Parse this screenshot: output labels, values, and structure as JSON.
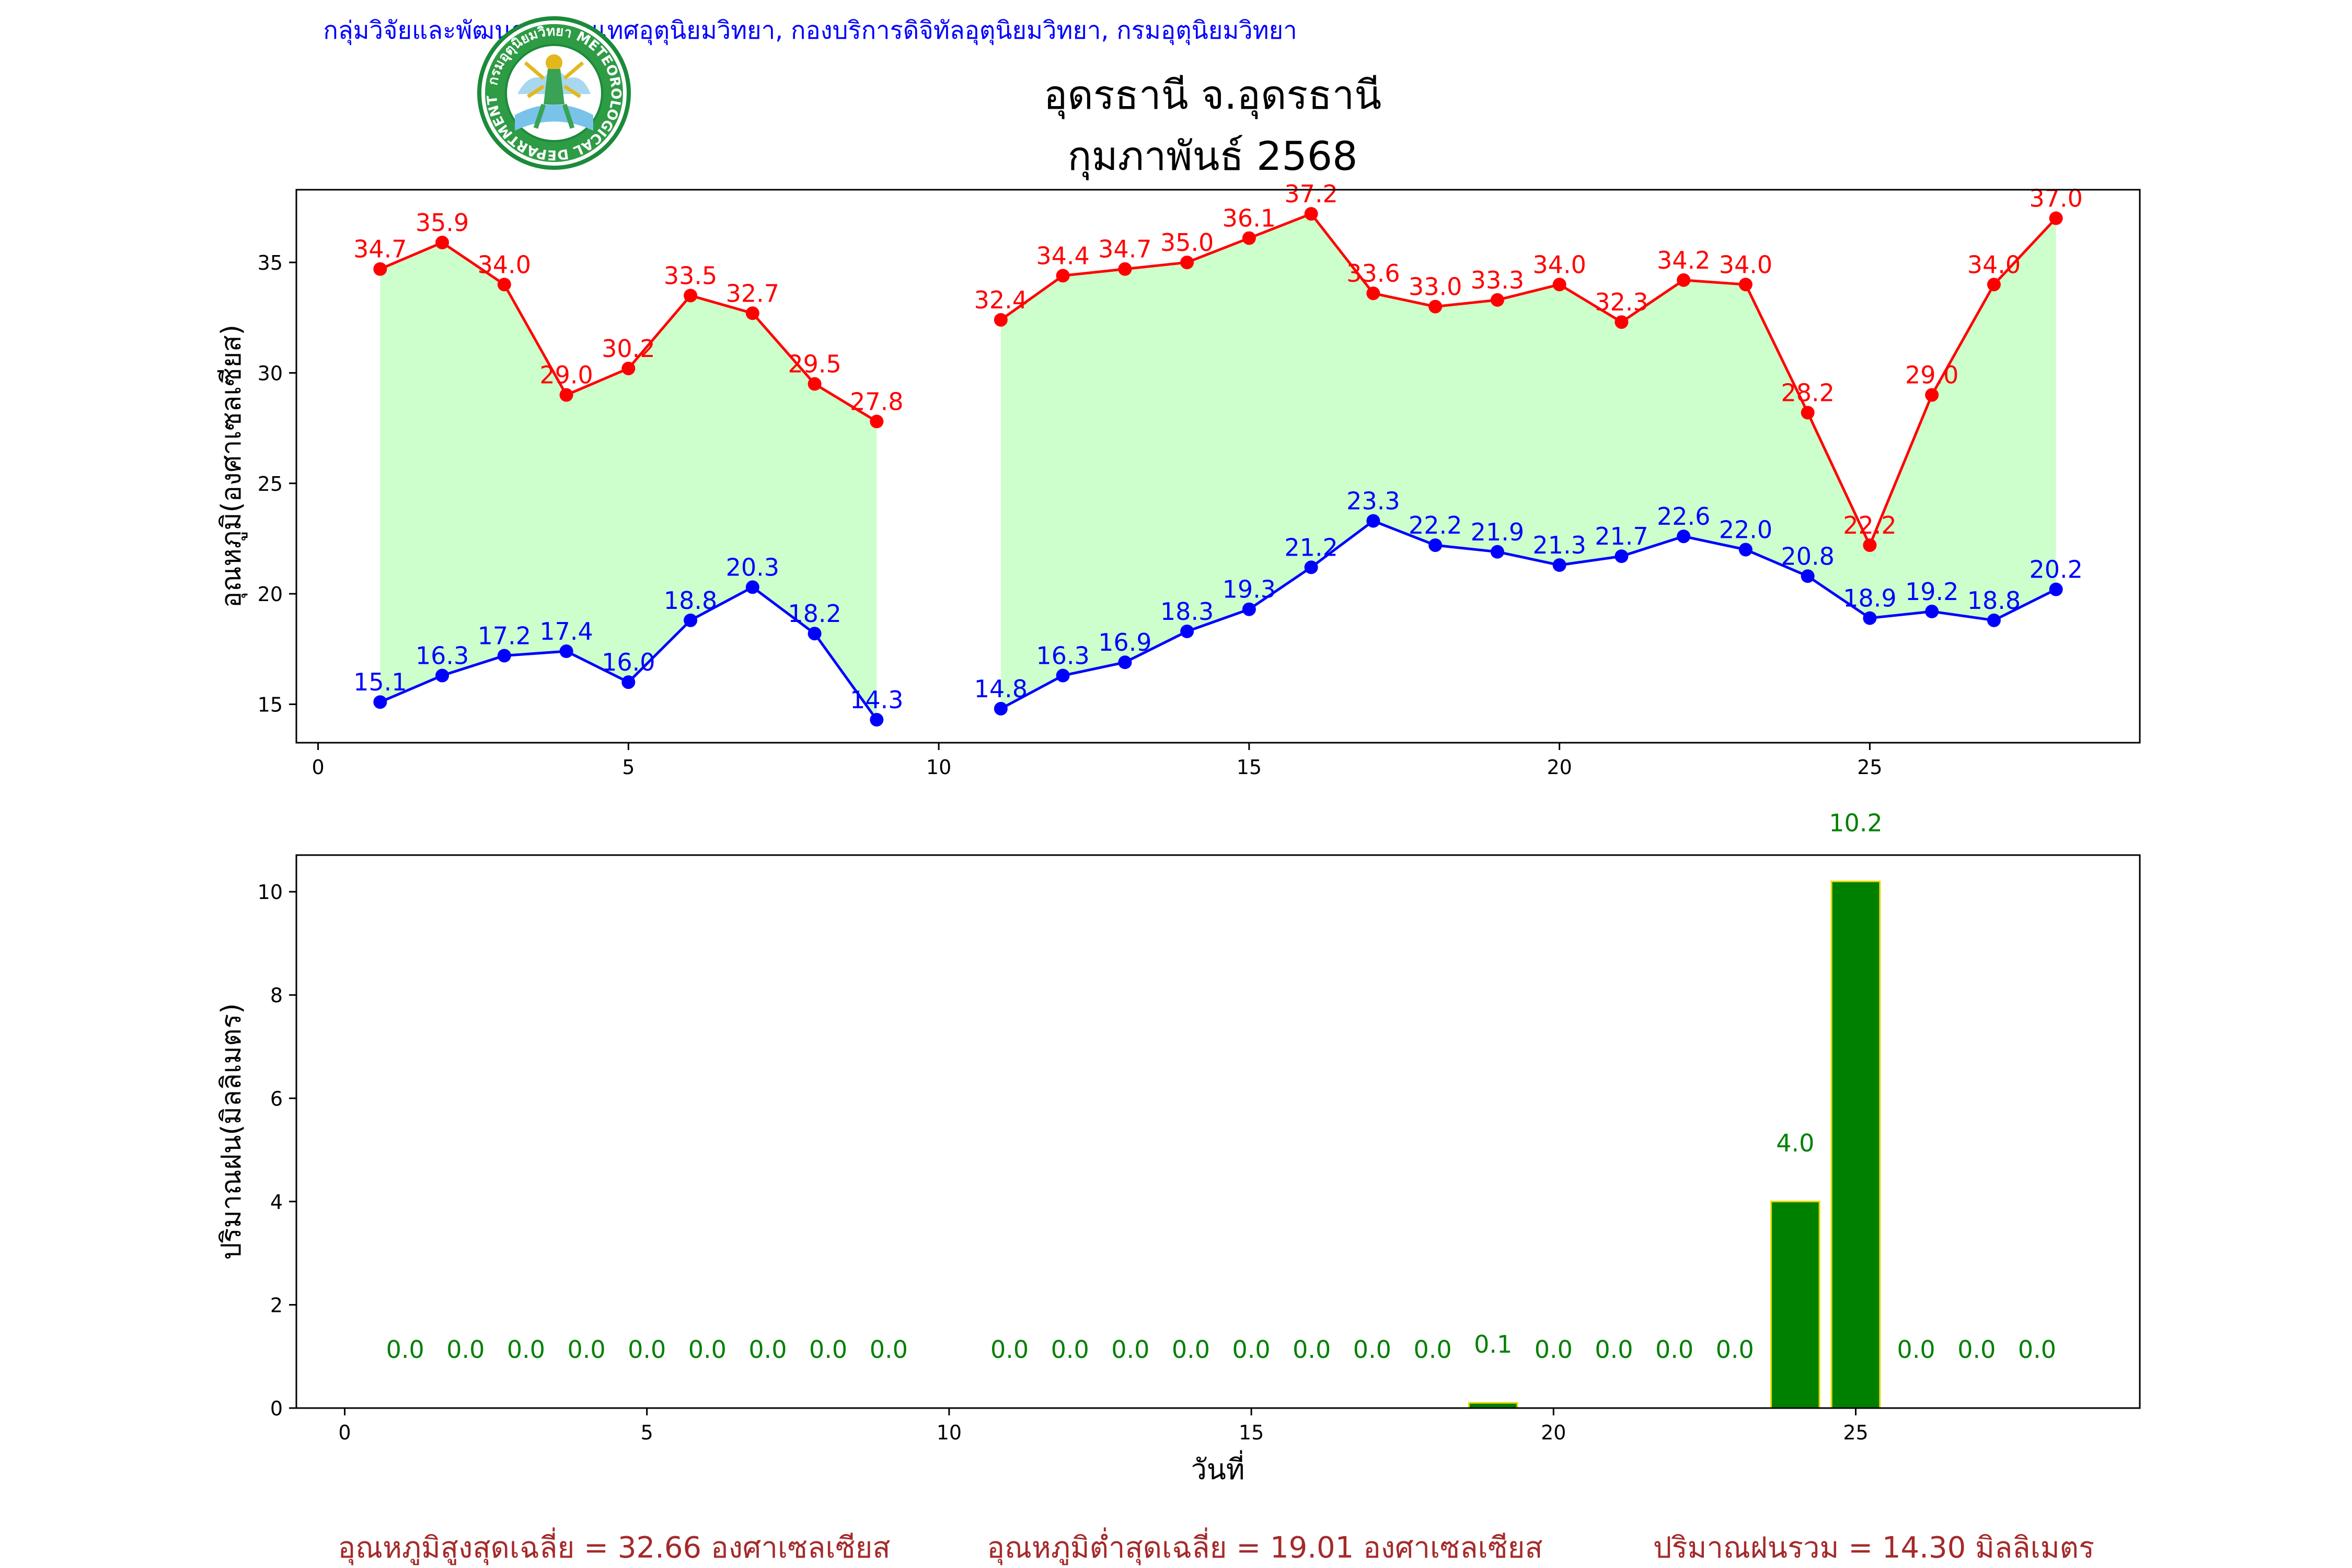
{
  "header": {
    "agency": "กลุ่มวิจัยและพัฒนาสารสนเทศอุตุนิยมวิทยา, กองบริการดิจิทัลอุตุนิยมวิทยา, กรมอุตุนิยมวิทยา",
    "station": "อุดรธานี จ.อุดรธานี",
    "month": "กุมภาพันธ์ 2568"
  },
  "logo": {
    "ring_text": "กรมอุตุนิยมวิทยา METEOROLOGICAL DEPARTMENT"
  },
  "colors": {
    "max": "#ff0000",
    "min": "#0000ff",
    "band": "#ccffcc",
    "rain": "#008000",
    "rain_edge": "#e5d800",
    "summary": "#a52a2a",
    "agency": "#0000ff"
  },
  "chart_data": [
    {
      "type": "line",
      "ylabel": "อุณหภูมิ(องศาเซลเซียส)",
      "xlim": [
        -0.35,
        29.35
      ],
      "ylim": [
        13.26,
        38.29
      ],
      "xticks": [
        0,
        5,
        10,
        15,
        20,
        25
      ],
      "yticks": [
        15,
        20,
        25,
        30,
        35
      ],
      "grid": false,
      "fill_between": "max-min",
      "series": [
        {
          "id": "max",
          "x": [
            1,
            2,
            3,
            4,
            5,
            6,
            7,
            8,
            9,
            11,
            12,
            13,
            14,
            15,
            16,
            17,
            18,
            19,
            20,
            21,
            22,
            23,
            24,
            25,
            26,
            27,
            28
          ],
          "values": [
            34.7,
            35.9,
            34.0,
            29.0,
            30.2,
            33.5,
            32.7,
            29.5,
            27.8,
            32.4,
            34.4,
            34.7,
            35.0,
            36.1,
            37.2,
            33.6,
            33.0,
            33.3,
            34.0,
            32.3,
            34.2,
            34.0,
            28.2,
            22.2,
            29.0,
            34.0,
            37.0
          ]
        },
        {
          "id": "min",
          "x": [
            1,
            2,
            3,
            4,
            5,
            6,
            7,
            8,
            9,
            11,
            12,
            13,
            14,
            15,
            16,
            17,
            18,
            19,
            20,
            21,
            22,
            23,
            24,
            25,
            26,
            27,
            28
          ],
          "values": [
            15.1,
            16.3,
            17.2,
            17.4,
            16.0,
            18.8,
            20.3,
            18.2,
            14.3,
            14.8,
            16.3,
            16.9,
            18.3,
            19.3,
            21.2,
            23.3,
            22.2,
            21.9,
            21.3,
            21.7,
            22.6,
            22.0,
            20.8,
            18.9,
            19.2,
            18.8,
            20.2
          ]
        }
      ]
    },
    {
      "type": "bar",
      "xlabel": "วันที่",
      "ylabel": "ปริมาณฝน(มิลลิเมตร)",
      "xlim": [
        -0.8,
        29.7
      ],
      "ylim": [
        0,
        10.71
      ],
      "xticks": [
        0,
        5,
        10,
        15,
        20,
        25
      ],
      "yticks": [
        0,
        2,
        4,
        6,
        8,
        10
      ],
      "grid": false,
      "x": [
        1,
        2,
        3,
        4,
        5,
        6,
        7,
        8,
        9,
        11,
        12,
        13,
        14,
        15,
        16,
        17,
        18,
        19,
        20,
        21,
        22,
        23,
        24,
        25,
        26,
        27,
        28
      ],
      "values": [
        0.0,
        0.0,
        0.0,
        0.0,
        0.0,
        0.0,
        0.0,
        0.0,
        0.0,
        0.0,
        0.0,
        0.0,
        0.0,
        0.0,
        0.0,
        0.0,
        0.0,
        0.1,
        0.0,
        0.0,
        0.0,
        0.0,
        4.0,
        10.2,
        0.0,
        0.0,
        0.0
      ]
    }
  ],
  "summary": {
    "avg_max": "อุณหภูมิสูงสุดเฉลี่ย = 32.66 องศาเซลเซียส",
    "avg_min": "อุณหภูมิต่ำสุดเฉลี่ย = 19.01 องศาเซลเซียส",
    "total_rain": "ปริมาณฝนรวม = 14.30 มิลลิเมตร"
  }
}
